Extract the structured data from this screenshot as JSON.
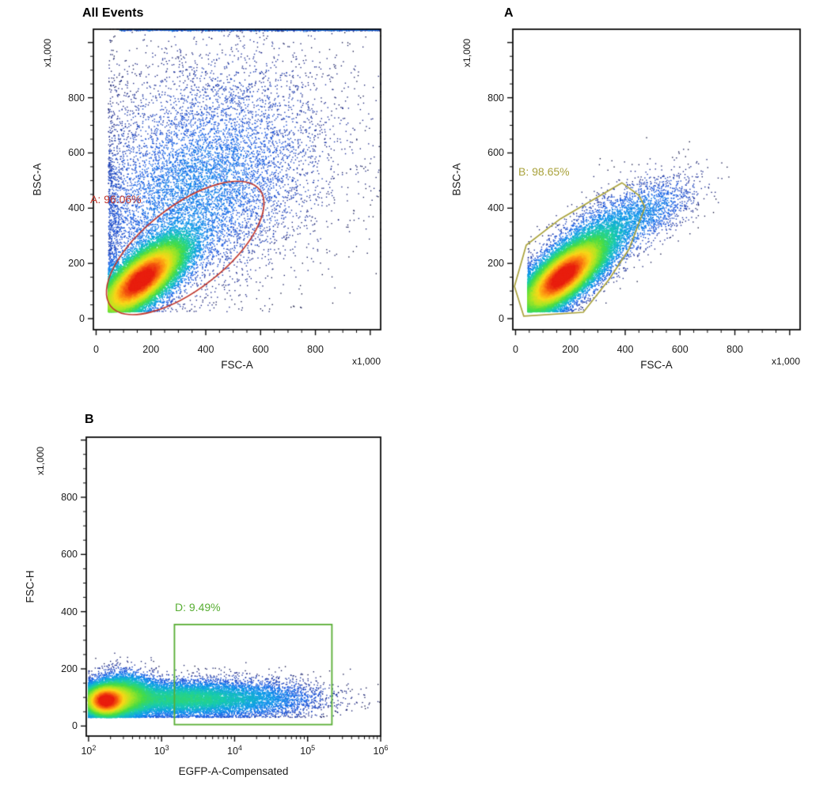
{
  "figure": {
    "background": "#ffffff"
  },
  "chart_data": [
    {
      "type": "scatter",
      "subtype": "flow-cytometry-pseudocolor-density",
      "title": "All Events",
      "xlabel": "FSC-A",
      "ylabel": "BSC-A",
      "x_multiplier": "x1,000",
      "y_multiplier": "x1,000",
      "x_scale": "linear",
      "y_scale": "linear",
      "xlim": [
        -10,
        1038
      ],
      "ylim": [
        -40,
        1048
      ],
      "x_ticks": {
        "values": [
          0,
          200,
          400,
          600,
          800
        ],
        "labels": [
          "0",
          "200",
          "400",
          "600",
          "800"
        ],
        "unlabeled_major": [
          1000
        ],
        "minor_step": 50
      },
      "y_ticks": {
        "values": [
          0,
          200,
          400,
          600,
          800
        ],
        "labels": [
          "0",
          "200",
          "400",
          "600",
          "800"
        ],
        "unlabeled_major": [
          1000
        ],
        "minor_step": 50
      },
      "grid": false,
      "gates": [
        {
          "name": "A",
          "label": "A: 96.06%",
          "percent": 96.06,
          "shape": "ellipse",
          "color": "#c2392e",
          "center": [
            325,
            256
          ],
          "radii": [
            345,
            150
          ],
          "angle_deg": 38
        }
      ],
      "population": {
        "seed": 101,
        "color_gamma": 0.42,
        "x_floor": 45,
        "x_floor_k": 0.2,
        "y_floor": 25,
        "y_floor_k": 0.3,
        "clusters": [
          {
            "kind": "gauss",
            "n": 14000,
            "cx": 165,
            "cy": 140,
            "sx": 110,
            "sy": 45,
            "rot_deg": 40
          },
          {
            "kind": "gauss",
            "n": 6000,
            "cx": 330,
            "cy": 430,
            "sx": 230,
            "sy": 165,
            "rot_deg": 35
          },
          {
            "kind": "gauss",
            "n": 2800,
            "cx": 470,
            "cy": 660,
            "sx": 270,
            "sy": 215,
            "rot_deg": 0
          },
          {
            "kind": "top_edge",
            "n": 2200,
            "x_start": 80,
            "x_end": 1035,
            "skew": 0.8
          }
        ]
      }
    },
    {
      "type": "scatter",
      "subtype": "flow-cytometry-pseudocolor-density",
      "title": "A",
      "xlabel": "FSC-A",
      "ylabel": "BSC-A",
      "x_multiplier": "x1,000",
      "y_multiplier": "x1,000",
      "x_scale": "linear",
      "y_scale": "linear",
      "xlim": [
        -10,
        1038
      ],
      "ylim": [
        -40,
        1048
      ],
      "x_ticks": {
        "values": [
          0,
          200,
          400,
          600,
          800
        ],
        "labels": [
          "0",
          "200",
          "400",
          "600",
          "800"
        ],
        "unlabeled_major": [
          1000
        ],
        "minor_step": 50
      },
      "y_ticks": {
        "values": [
          0,
          200,
          400,
          600,
          800
        ],
        "labels": [
          "0",
          "200",
          "400",
          "600",
          "800"
        ],
        "unlabeled_major": [
          1000
        ],
        "minor_step": 50
      },
      "grid": false,
      "gates": [
        {
          "name": "B",
          "label": "B: 98.65%",
          "percent": 98.65,
          "shape": "polygon",
          "color": "#a9a23b",
          "vertices": [
            [
              30,
              9
            ],
            [
              -4,
              117
            ],
            [
              39,
              266
            ],
            [
              163,
              361
            ],
            [
              388,
              492
            ],
            [
              449,
              447
            ],
            [
              472,
              404
            ],
            [
              414,
              252
            ],
            [
              342,
              143
            ],
            [
              247,
              23
            ]
          ]
        }
      ],
      "population": {
        "seed": 202,
        "color_gamma": 0.42,
        "x_floor": 45,
        "x_floor_k": 0.2,
        "y_floor": 25,
        "y_floor_k": 0.3,
        "clusters": [
          {
            "kind": "gauss",
            "n": 15000,
            "cx": 170,
            "cy": 150,
            "sx": 105,
            "sy": 42,
            "rot_deg": 40
          },
          {
            "kind": "gauss",
            "n": 3500,
            "cx": 300,
            "cy": 280,
            "sx": 150,
            "sy": 60,
            "rot_deg": 38
          },
          {
            "kind": "gauss",
            "n": 650,
            "cx": 525,
            "cy": 400,
            "sx": 95,
            "sy": 48,
            "rot_deg": 33
          }
        ]
      }
    },
    {
      "type": "scatter",
      "subtype": "flow-cytometry-pseudocolor-density",
      "title": "B",
      "xlabel": "EGFP-A-Compensated",
      "ylabel": "FSC-H",
      "y_multiplier": "x1,000",
      "x_scale": "log",
      "y_scale": "linear",
      "xlim": [
        93,
        1000000
      ],
      "ylim": [
        -35,
        1010
      ],
      "x_ticks": {
        "decade_values": [
          100,
          1000,
          10000,
          100000,
          1000000
        ],
        "decade_labels": [
          "10^2",
          "10^3",
          "10^4",
          "10^5",
          "10^6"
        ]
      },
      "y_ticks": {
        "values": [
          0,
          200,
          400,
          600,
          800
        ],
        "labels": [
          "0",
          "200",
          "400",
          "600",
          "800"
        ],
        "unlabeled_major": [
          1000
        ],
        "minor_step": 50
      },
      "grid": false,
      "gates": [
        {
          "name": "D",
          "label": "D: 9.49%",
          "percent": 9.49,
          "shape": "rect",
          "color": "#58ae33",
          "x_range": [
            1500,
            215000
          ],
          "y_range": [
            5,
            355
          ]
        }
      ],
      "population": {
        "seed": 303,
        "color_gamma": 0.4,
        "x_floor": 2.0,
        "x_floor_k": 0.15,
        "y_floor": 30,
        "y_floor_k": 0.25,
        "clusters": [
          {
            "kind": "gauss",
            "n": 8000,
            "cx": 2.22,
            "cy": 88,
            "sx": 0.16,
            "sy": 30,
            "rot_deg": 0
          },
          {
            "kind": "gauss",
            "n": 5000,
            "cx": 2.5,
            "cy": 105,
            "sx": 0.22,
            "sy": 42,
            "rot_deg": 0
          },
          {
            "kind": "gauss",
            "n": 6000,
            "cx": 3.25,
            "cy": 95,
            "sx": 0.52,
            "sy": 33,
            "rot_deg": 0
          },
          {
            "kind": "gauss",
            "n": 2800,
            "cx": 4.25,
            "cy": 95,
            "sx": 0.55,
            "sy": 36,
            "rot_deg": 0
          }
        ]
      }
    }
  ]
}
